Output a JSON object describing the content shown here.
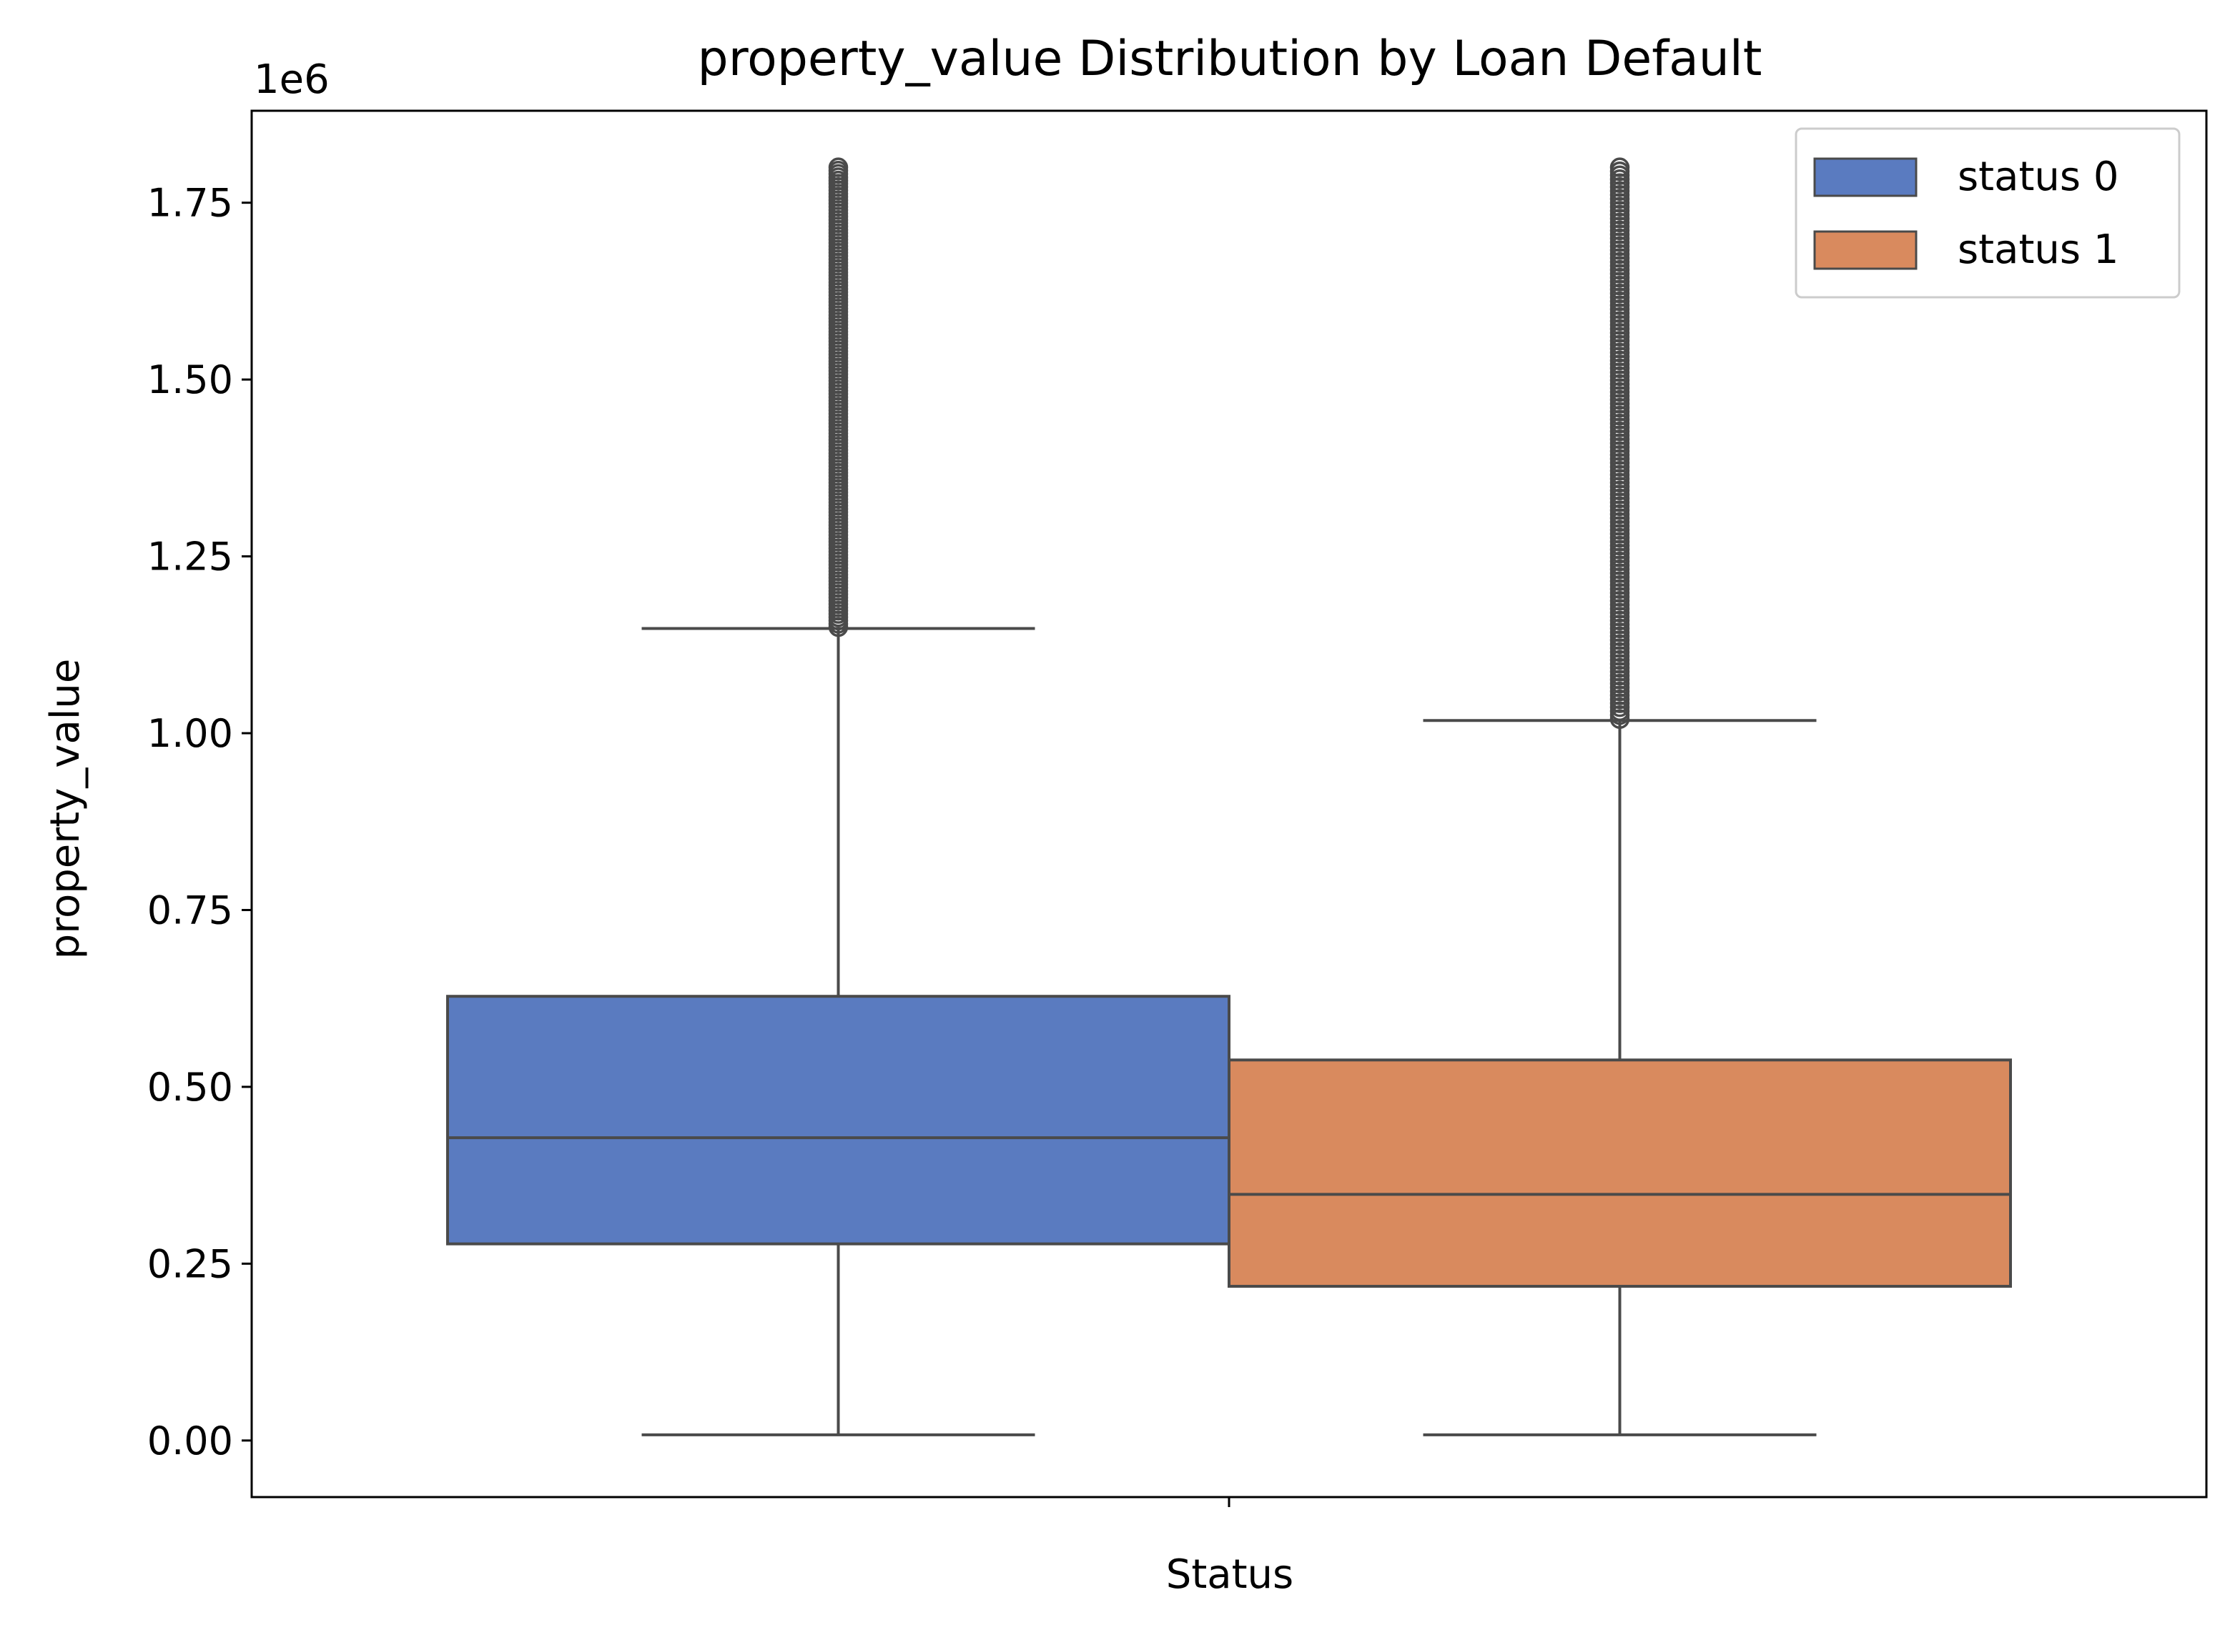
{
  "chart_data": {
    "type": "box",
    "title": "property_value Distribution by Loan Default",
    "xlabel": "Status",
    "ylabel": "property_value",
    "offset_text": "1e6",
    "x_tick_labels": [
      ""
    ],
    "ylim": [
      -80000,
      1880000
    ],
    "yticks": [
      0,
      250000,
      500000,
      750000,
      1000000,
      1250000,
      1500000,
      1750000
    ],
    "ytick_labels": [
      "0.00",
      "0.25",
      "0.50",
      "0.75",
      "1.00",
      "1.25",
      "1.50",
      "1.75"
    ],
    "grid": false,
    "legend_position": "top-right",
    "series": [
      {
        "name": "status 0",
        "color": "#5a7bc0",
        "whisker_low": 8000,
        "q1": 278000,
        "median": 428000,
        "q3": 628000,
        "whisker_high": 1148000,
        "outliers_range": [
          1150000,
          1800000
        ]
      },
      {
        "name": "status 1",
        "color": "#d98a5e",
        "whisker_low": 8000,
        "q1": 218000,
        "median": 348000,
        "q3": 538000,
        "whisker_high": 1018000,
        "outliers_range": [
          1020000,
          1800000
        ]
      }
    ]
  }
}
